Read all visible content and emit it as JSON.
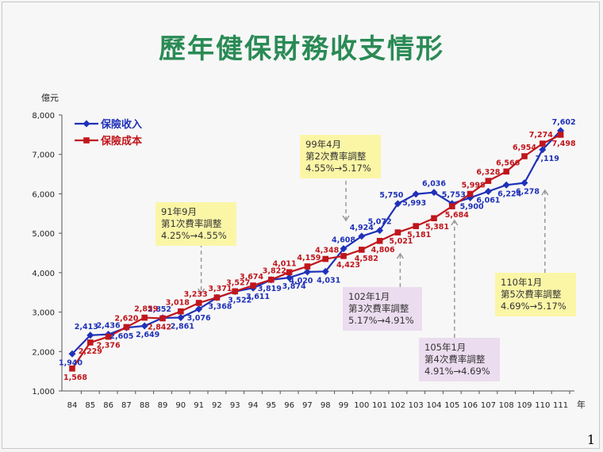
{
  "page": {
    "title": "歷年健保財務收支情形",
    "page_number": "1"
  },
  "chart_data": {
    "type": "line",
    "title": "歷年健保財務收支情形",
    "ylabel": "億元",
    "xlabel": "年",
    "ylim": [
      1000,
      8000
    ],
    "yticks": [
      "1,000",
      "2,000",
      "3,000",
      "4,000",
      "5,000",
      "6,000",
      "7,000",
      "8,000"
    ],
    "ytick_values": [
      1000,
      2000,
      3000,
      4000,
      5000,
      6000,
      7000,
      8000
    ],
    "categories": [
      "84",
      "85",
      "86",
      "87",
      "88",
      "89",
      "90",
      "91",
      "92",
      "93",
      "94",
      "95",
      "96",
      "97",
      "98",
      "99",
      "100",
      "101",
      "102",
      "103",
      "104",
      "105",
      "106",
      "107",
      "108",
      "109",
      "110",
      "111"
    ],
    "legend_position": "top-left",
    "series": [
      {
        "name": "保險收入",
        "color": "#1f31b8",
        "marker": "diamond",
        "values": [
          1940,
          2413,
          2436,
          2605,
          2649,
          2852,
          2861,
          3076,
          3368,
          3522,
          3611,
          3819,
          3874,
          4020,
          4031,
          4608,
          4924,
          5072,
          5750,
          5993,
          6036,
          5753,
          5900,
          6061,
          6224,
          6278,
          7119,
          7602
        ],
        "labels": [
          "1,940",
          "2,413",
          "2,436",
          "2,605",
          "2,649",
          "2,852",
          "2,861",
          "3,076",
          "3,368",
          "3,522",
          "3,611",
          "3,819",
          "3,874",
          "4,020",
          "4,031",
          "4,608",
          "4,924",
          "5,072",
          "5,750",
          "5,993",
          "6,036",
          "5,753",
          "5,900",
          "6,061",
          "6,224",
          "6,278",
          "7,119",
          "7,602"
        ]
      },
      {
        "name": "保險成本",
        "color": "#c0161c",
        "marker": "square",
        "values": [
          1568,
          2229,
          2376,
          2620,
          2859,
          2842,
          3018,
          3233,
          3371,
          3527,
          3674,
          3822,
          4011,
          4159,
          4348,
          4423,
          4582,
          4806,
          5021,
          5181,
          5381,
          5684,
          5998,
          6328,
          6566,
          6954,
          7274,
          7498
        ],
        "labels": [
          "1,568",
          "2,229",
          "2,376",
          "2,620",
          "2,859",
          "2,842",
          "3,018",
          "3,233",
          "3,371",
          "3,527",
          "3,674",
          "3,822",
          "4,011",
          "4,159",
          "4,348",
          "4,423",
          "4,582",
          "4,806",
          "5,021",
          "5,181",
          "5,381",
          "5,684",
          "5,998",
          "6,328",
          "6,566",
          "6,954",
          "7,274",
          "7,498"
        ]
      }
    ],
    "annotations": [
      {
        "lines": [
          "91年9月",
          "第1次費率調整",
          "4.25%→4.55%"
        ],
        "color": "yellow",
        "year_index": 7
      },
      {
        "lines": [
          "99年4月",
          "第2次費率調整",
          "4.55%→5.17%"
        ],
        "color": "yellow",
        "year_index": 15
      },
      {
        "lines": [
          "102年1月",
          "第3次費率調整",
          "5.17%→4.91%"
        ],
        "color": "pink",
        "year_index": 18
      },
      {
        "lines": [
          "105年1月",
          "第4次費率調整",
          "4.91%→4.69%"
        ],
        "color": "pink",
        "year_index": 21
      },
      {
        "lines": [
          "110年1月",
          "第5次費率調整",
          "4.69%→5.17%"
        ],
        "color": "yellow",
        "year_index": 26
      }
    ]
  }
}
